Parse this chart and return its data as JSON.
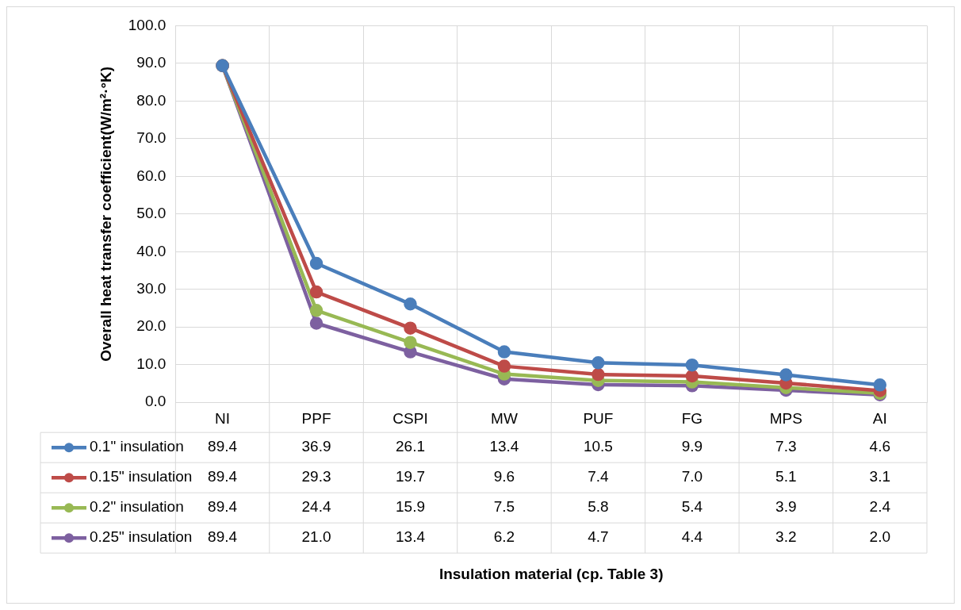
{
  "chart_data": {
    "type": "line",
    "ylabel": "Overall heat transfer coefficient(W/m²·°K)",
    "annotations": [
      "Insulation material (cp. Table 3)"
    ],
    "categories": [
      "NI",
      "PPF",
      "CSPI",
      "MW",
      "PUF",
      "FG",
      "MPS",
      "AI"
    ],
    "series": [
      {
        "name": "0.1\" insulation",
        "color": "#4a7ebb",
        "values": [
          89.4,
          36.9,
          26.1,
          13.4,
          10.5,
          9.9,
          7.3,
          4.6
        ],
        "value_labels": [
          "89.4",
          "36.9",
          "26.1",
          "13.4",
          "10.5",
          "9.9",
          "7.3",
          "4.6"
        ]
      },
      {
        "name": "0.15\" insulation",
        "color": "#be4b48",
        "values": [
          89.4,
          29.3,
          19.7,
          9.6,
          7.4,
          7.0,
          5.1,
          3.1
        ],
        "value_labels": [
          "89.4",
          "29.3",
          "19.7",
          "9.6",
          "7.4",
          "7.0",
          "5.1",
          "3.1"
        ]
      },
      {
        "name": "0.2\" insulation",
        "color": "#98b954",
        "values": [
          89.4,
          24.4,
          15.9,
          7.5,
          5.8,
          5.4,
          3.9,
          2.4
        ],
        "value_labels": [
          "89.4",
          "24.4",
          "15.9",
          "7.5",
          "5.8",
          "5.4",
          "3.9",
          "2.4"
        ]
      },
      {
        "name": "0.25\" insulation",
        "color": "#7d60a0",
        "values": [
          89.4,
          21.0,
          13.4,
          6.2,
          4.7,
          4.4,
          3.2,
          2.0
        ],
        "value_labels": [
          "89.4",
          "21.0",
          "13.4",
          "6.2",
          "4.7",
          "4.4",
          "3.2",
          "2.0"
        ]
      }
    ],
    "ylim": [
      0,
      100
    ],
    "yticks": [
      {
        "value": 0,
        "label": "0.0"
      },
      {
        "value": 10,
        "label": "10.0"
      },
      {
        "value": 20,
        "label": "20.0"
      },
      {
        "value": 30,
        "label": "30.0"
      },
      {
        "value": 40,
        "label": "40.0"
      },
      {
        "value": 50,
        "label": "50.0"
      },
      {
        "value": 60,
        "label": "60.0"
      },
      {
        "value": 70,
        "label": "70.0"
      },
      {
        "value": 80,
        "label": "80.0"
      },
      {
        "value": 90,
        "label": "90.0"
      },
      {
        "value": 100,
        "label": "100.0"
      }
    ],
    "grid": true,
    "legend": "bottom",
    "marker": "circle",
    "line_style": "solid"
  }
}
